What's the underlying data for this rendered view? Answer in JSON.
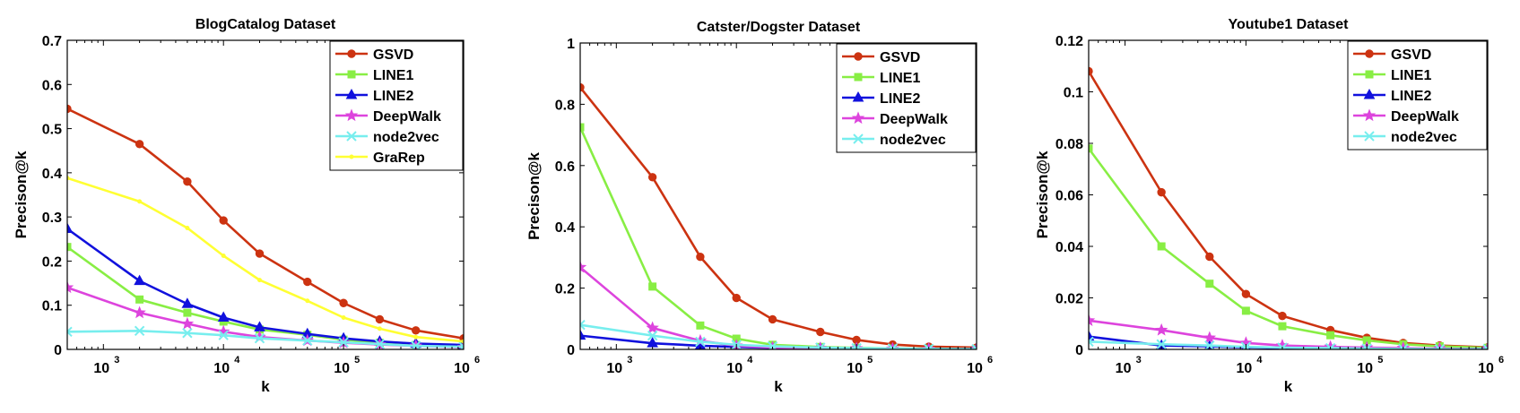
{
  "chart_data": [
    {
      "type": "line",
      "title": "BlogCatalog Dataset",
      "xlabel": "k",
      "ylabel": "Precison@k",
      "x_scale": "log",
      "xlim": [
        500,
        1000000
      ],
      "ylim": [
        0,
        0.7
      ],
      "x_ticks": [
        1000,
        10000,
        100000,
        1000000
      ],
      "x_tick_labels": [
        {
          "base": "10",
          "exp": "3"
        },
        {
          "base": "10",
          "exp": "4"
        },
        {
          "base": "10",
          "exp": "5"
        },
        {
          "base": "10",
          "exp": "6"
        }
      ],
      "y_ticks": [
        0,
        0.1,
        0.2,
        0.3,
        0.4,
        0.5,
        0.6,
        0.7
      ],
      "y_tick_labels": [
        "0",
        "0.1",
        "0.2",
        "0.3",
        "0.4",
        "0.5",
        "0.6",
        "0.7"
      ],
      "legend_position": "top-right",
      "x": [
        500,
        2000,
        5000,
        10000,
        20000,
        50000,
        100000,
        200000,
        400000,
        1000000
      ],
      "series": [
        {
          "name": "GSVD",
          "color": "#cc3311",
          "marker": "circle",
          "values": [
            0.545,
            0.465,
            0.38,
            0.292,
            0.217,
            0.153,
            0.105,
            0.068,
            0.043,
            0.025
          ]
        },
        {
          "name": "LINE1",
          "color": "#88ee44",
          "marker": "square",
          "values": [
            0.232,
            0.113,
            0.083,
            0.063,
            0.045,
            0.033,
            0.022,
            0.015,
            0.01,
            0.007
          ]
        },
        {
          "name": "LINE2",
          "color": "#1111dd",
          "marker": "triangle",
          "values": [
            0.273,
            0.155,
            0.103,
            0.072,
            0.05,
            0.035,
            0.025,
            0.018,
            0.013,
            0.01
          ]
        },
        {
          "name": "DeepWalk",
          "color": "#dd44dd",
          "marker": "star",
          "values": [
            0.14,
            0.083,
            0.058,
            0.04,
            0.028,
            0.02,
            0.015,
            0.011,
            0.008,
            0.005
          ]
        },
        {
          "name": "node2vec",
          "color": "#77eeee",
          "marker": "x",
          "values": [
            0.04,
            0.042,
            0.037,
            0.032,
            0.025,
            0.02,
            0.016,
            0.012,
            0.008,
            0.006
          ]
        },
        {
          "name": "GraRep",
          "color": "#ffff33",
          "marker": "dot",
          "values": [
            0.388,
            0.335,
            0.275,
            0.212,
            0.157,
            0.11,
            0.072,
            0.047,
            0.028,
            0.018
          ]
        }
      ]
    },
    {
      "type": "line",
      "title": "Catster/Dogster Dataset",
      "xlabel": "k",
      "ylabel": "Precison@k",
      "x_scale": "log",
      "xlim": [
        500,
        1000000
      ],
      "ylim": [
        0,
        1
      ],
      "x_ticks": [
        1000,
        10000,
        100000,
        1000000
      ],
      "x_tick_labels": [
        {
          "base": "10",
          "exp": "3"
        },
        {
          "base": "10",
          "exp": "4"
        },
        {
          "base": "10",
          "exp": "5"
        },
        {
          "base": "10",
          "exp": "6"
        }
      ],
      "y_ticks": [
        0,
        0.2,
        0.4,
        0.6,
        0.8,
        1
      ],
      "y_tick_labels": [
        "0",
        "0.2",
        "0.4",
        "0.6",
        "0.8",
        "1"
      ],
      "legend_position": "top-right",
      "x": [
        500,
        2000,
        5000,
        10000,
        20000,
        50000,
        100000,
        200000,
        400000,
        1000000
      ],
      "series": [
        {
          "name": "GSVD",
          "color": "#cc3311",
          "marker": "circle",
          "values": [
            0.855,
            0.562,
            0.302,
            0.168,
            0.098,
            0.057,
            0.031,
            0.016,
            0.009,
            0.006
          ]
        },
        {
          "name": "LINE1",
          "color": "#88ee44",
          "marker": "square",
          "values": [
            0.725,
            0.205,
            0.078,
            0.035,
            0.015,
            0.008,
            0.005,
            0.003,
            0.002,
            0.001
          ]
        },
        {
          "name": "LINE2",
          "color": "#1111dd",
          "marker": "triangle",
          "values": [
            0.045,
            0.02,
            0.012,
            0.008,
            0.005,
            0.004,
            0.003,
            0.002,
            0.001,
            0.001
          ]
        },
        {
          "name": "DeepWalk",
          "color": "#dd44dd",
          "marker": "star",
          "values": [
            0.268,
            0.07,
            0.028,
            0.012,
            0.006,
            0.004,
            0.003,
            0.002,
            0.001,
            0.001
          ]
        },
        {
          "name": "node2vec",
          "color": "#77eeee",
          "marker": "x",
          "values": [
            0.08,
            0.045,
            0.025,
            0.015,
            0.01,
            0.006,
            0.004,
            0.003,
            0.002,
            0.001
          ]
        }
      ]
    },
    {
      "type": "line",
      "title": "Youtube1 Dataset",
      "xlabel": "k",
      "ylabel": "Precison@k",
      "x_scale": "log",
      "xlim": [
        500,
        1000000
      ],
      "ylim": [
        0,
        0.12
      ],
      "x_ticks": [
        1000,
        10000,
        100000,
        1000000
      ],
      "x_tick_labels": [
        {
          "base": "10",
          "exp": "3"
        },
        {
          "base": "10",
          "exp": "4"
        },
        {
          "base": "10",
          "exp": "5"
        },
        {
          "base": "10",
          "exp": "6"
        }
      ],
      "y_ticks": [
        0,
        0.02,
        0.04,
        0.06,
        0.08,
        0.1,
        0.12
      ],
      "y_tick_labels": [
        "0",
        "0.02",
        "0.04",
        "0.06",
        "0.08",
        "0.1",
        "0.12"
      ],
      "legend_position": "top-right",
      "x": [
        500,
        2000,
        5000,
        10000,
        20000,
        50000,
        100000,
        200000,
        400000,
        1000000
      ],
      "series": [
        {
          "name": "GSVD",
          "color": "#cc3311",
          "marker": "circle",
          "values": [
            0.108,
            0.061,
            0.036,
            0.0215,
            0.013,
            0.0075,
            0.0045,
            0.0025,
            0.0015,
            0.0008
          ]
        },
        {
          "name": "LINE1",
          "color": "#88ee44",
          "marker": "square",
          "values": [
            0.078,
            0.04,
            0.0255,
            0.015,
            0.009,
            0.0055,
            0.0035,
            0.002,
            0.0012,
            0.0006
          ]
        },
        {
          "name": "LINE2",
          "color": "#1111dd",
          "marker": "triangle",
          "values": [
            0.005,
            0.0015,
            0.0012,
            0.0008,
            0.0005,
            0.0003,
            0.0002,
            0.0001,
            0.0001,
            0.0001
          ]
        },
        {
          "name": "DeepWalk",
          "color": "#dd44dd",
          "marker": "star",
          "values": [
            0.0112,
            0.0075,
            0.0045,
            0.0025,
            0.0015,
            0.001,
            0.0007,
            0.0005,
            0.0003,
            0.0002
          ]
        },
        {
          "name": "node2vec",
          "color": "#77eeee",
          "marker": "x",
          "values": [
            0.003,
            0.002,
            0.0015,
            0.001,
            0.0007,
            0.0005,
            0.0003,
            0.0002,
            0.0001,
            0.0001
          ]
        }
      ]
    }
  ]
}
